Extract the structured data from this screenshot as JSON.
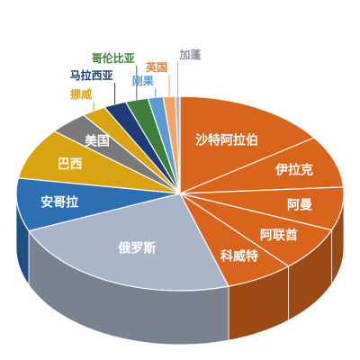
{
  "chart_data": {
    "type": "pie",
    "style": "3d",
    "title": "",
    "slices": [
      {
        "label": "沙特阿拉伯",
        "value": 10.2,
        "color": "#d9651c",
        "label_color": "#ffffff"
      },
      {
        "label": "伊拉克",
        "value": 5.8,
        "color": "#d9651c",
        "label_color": "#ffffff"
      },
      {
        "label": "阿曼",
        "value": 4.8,
        "color": "#d9651c",
        "label_color": "#ffffff"
      },
      {
        "label": "阿联酋",
        "value": 4.9,
        "color": "#d9651c",
        "label_color": "#ffffff"
      },
      {
        "label": "科威特",
        "value": 4.5,
        "color": "#d9651c",
        "label_color": "#ffffff"
      },
      {
        "label": "俄罗斯",
        "value": 15.7,
        "color": "#a9b5c9",
        "label_color": "#ffffff"
      },
      {
        "label": "安哥拉",
        "value": 5.9,
        "color": "#2c6fb5",
        "label_color": "#ffffff"
      },
      {
        "label": "巴西",
        "value": 5.7,
        "color": "#d9a312",
        "label_color": "#ffffff"
      },
      {
        "label": "美国",
        "value": 2.6,
        "color": "#7a7a7a",
        "label_color": "#333333"
      },
      {
        "label": "挪威",
        "value": 1.6,
        "color": "#d9a312",
        "label_color": "#d9a312"
      },
      {
        "label": "马拉西亚",
        "value": 1.5,
        "color": "#1e3c78",
        "label_color": "#1e3c78"
      },
      {
        "label": "哥伦比亚",
        "value": 1.5,
        "color": "#3d7e3a",
        "label_color": "#3d7e3a"
      },
      {
        "label": "刚果",
        "value": 1.0,
        "color": "#5b9bd5",
        "label_color": "#5b9bd5"
      },
      {
        "label": "英国",
        "value": 0.8,
        "color": "#f4a460",
        "label_color": "#e8843a"
      },
      {
        "label": "加蓬",
        "value": 0.3,
        "color": "#b0b8c8",
        "label_color": "#8a92a0"
      }
    ]
  }
}
